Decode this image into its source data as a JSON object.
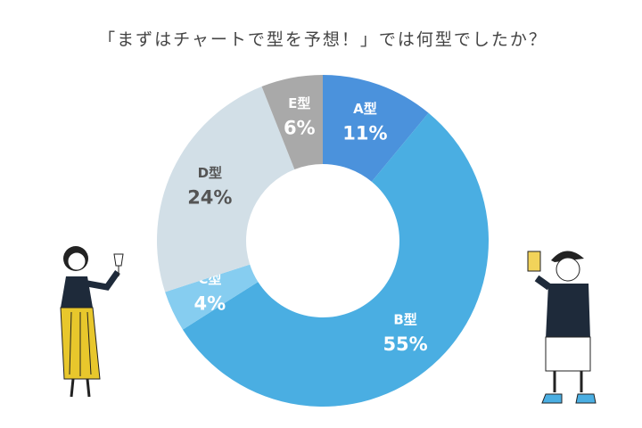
{
  "chart_data": {
    "type": "donut",
    "title": "「まずはチャートで型を予想！」では何型でしたか？",
    "categories": [
      "A型",
      "B型",
      "C型",
      "D型",
      "E型"
    ],
    "values": [
      11,
      55,
      4,
      24,
      6
    ],
    "value_labels": [
      "11%",
      "55%",
      "4%",
      "24%",
      "6%"
    ],
    "colors": [
      "#4b92dc",
      "#4aaee2",
      "#86cdf0",
      "#d2dfe7",
      "#a9a9a9"
    ]
  }
}
